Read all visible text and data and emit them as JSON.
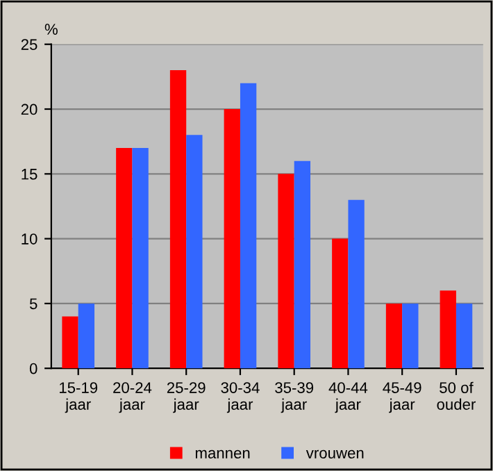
{
  "chart_data": {
    "type": "bar",
    "ylabel": "%",
    "categories": [
      "15-19\njaar",
      "20-24\njaar",
      "25-29\njaar",
      "30-34\njaar",
      "35-39\njaar",
      "40-44\njaar",
      "45-49\njaar",
      "50 of\nouder"
    ],
    "series": [
      {
        "name": "mannen",
        "color": "#ff0000",
        "values": [
          4,
          17,
          23,
          20,
          15,
          10,
          5,
          6
        ]
      },
      {
        "name": "vrouwen",
        "color": "#3366ff",
        "values": [
          5,
          17,
          18,
          22,
          16,
          13,
          5,
          5
        ]
      }
    ],
    "ylim": [
      0,
      25
    ],
    "yticks": [
      0,
      5,
      10,
      15,
      20,
      25
    ],
    "grid": "y",
    "legend": "bottom"
  }
}
